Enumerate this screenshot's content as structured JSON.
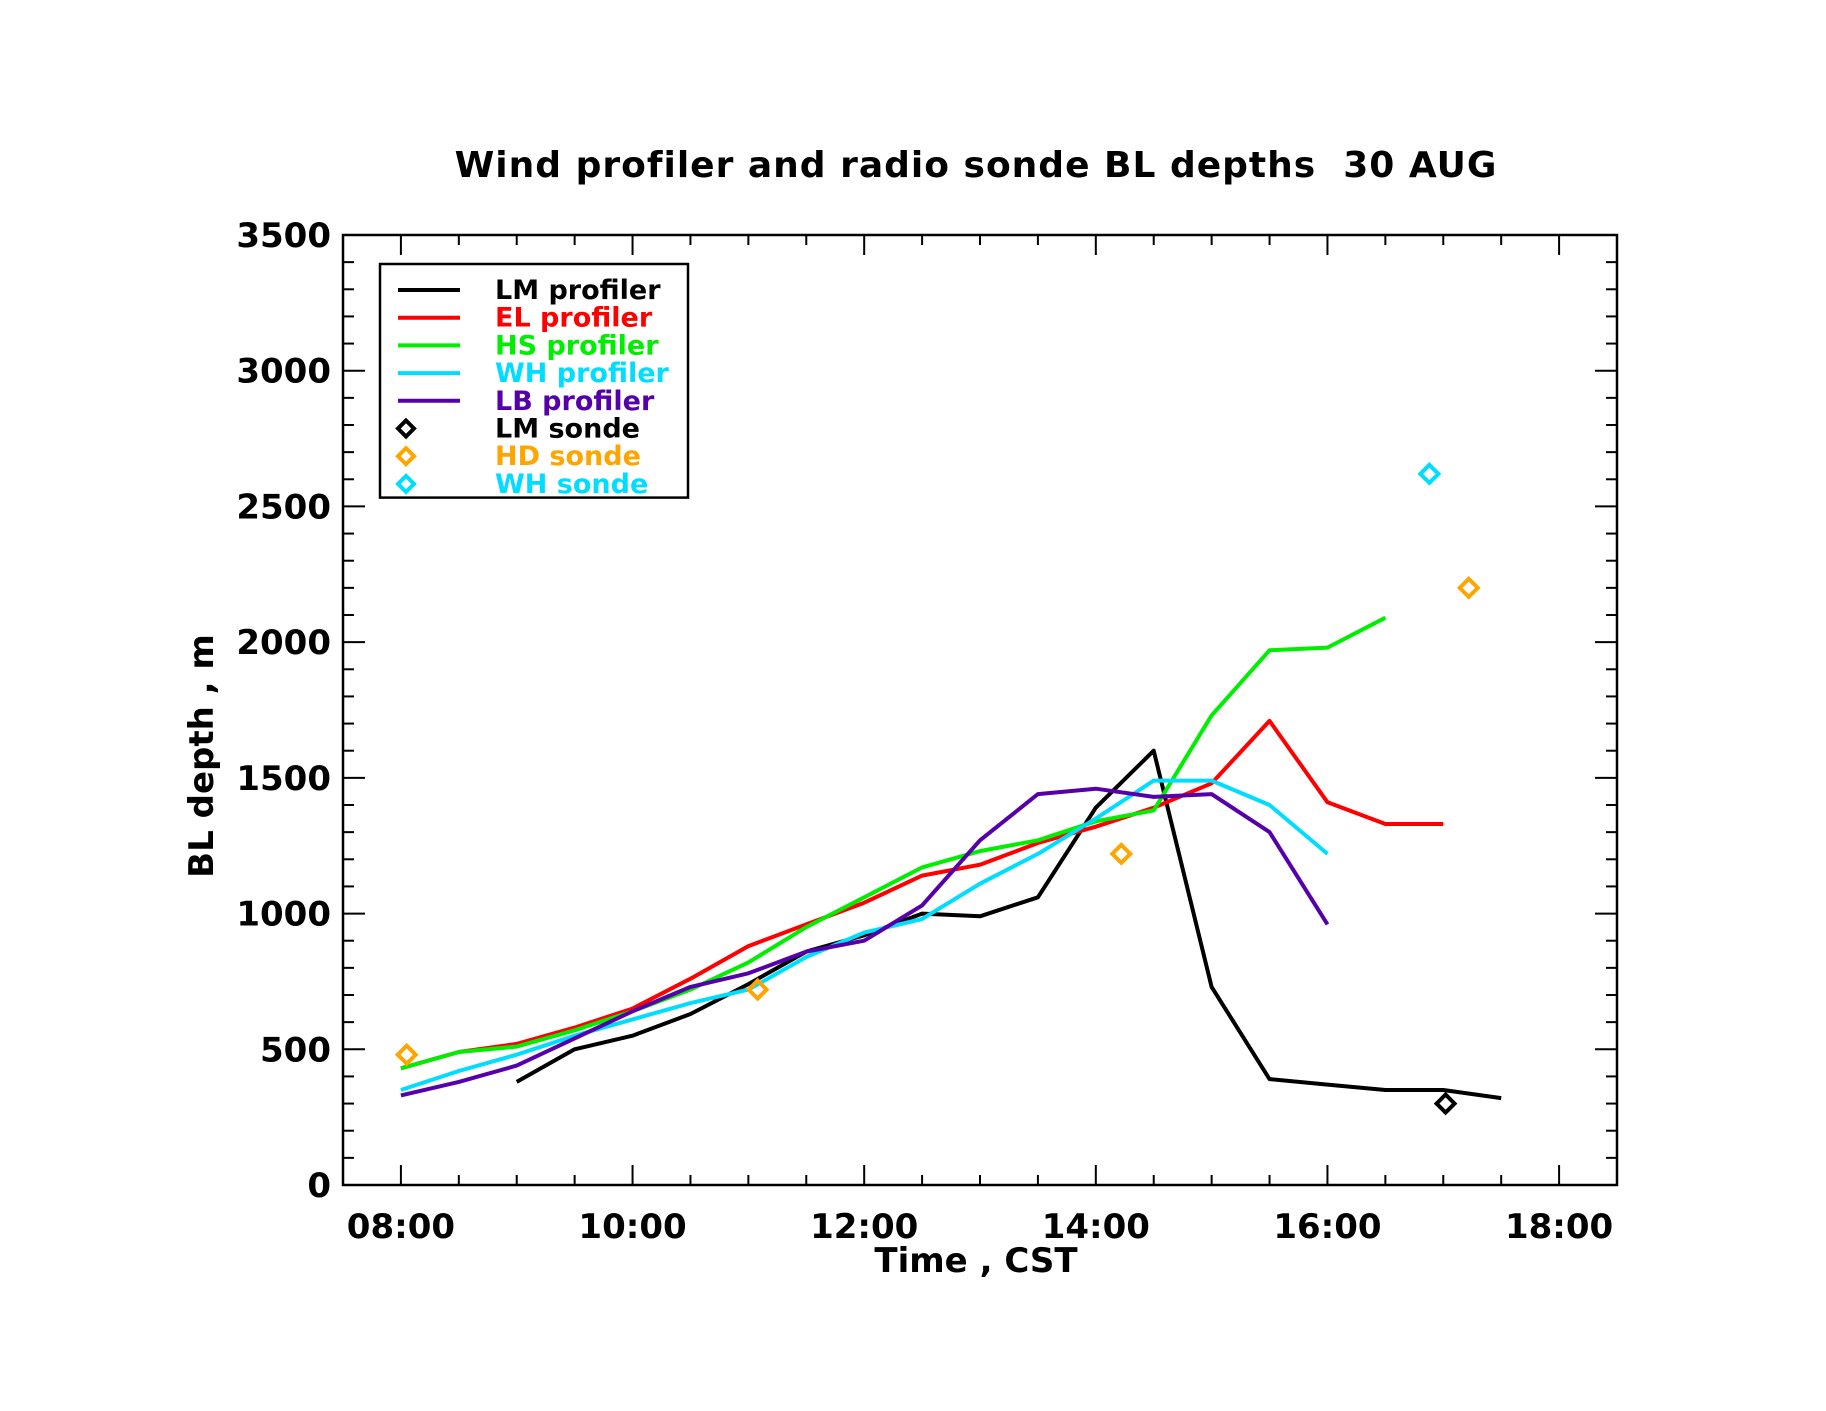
{
  "chart_data": {
    "type": "line",
    "title": "Wind profiler and radio sonde BL depths  30 AUG",
    "xlabel": "Time , CST",
    "ylabel": "BL depth , m",
    "xlim": [
      7.5,
      18.5
    ],
    "ylim": [
      0,
      3500
    ],
    "x_ticks": [
      8,
      10,
      12,
      14,
      16,
      18
    ],
    "x_tick_labels": [
      "08:00",
      "10:00",
      "12:00",
      "14:00",
      "16:00",
      "18:00"
    ],
    "y_ticks": [
      0,
      500,
      1000,
      1500,
      2000,
      2500,
      3000,
      3500
    ],
    "y_tick_labels": [
      "0",
      "500",
      "1000",
      "1500",
      "2000",
      "2500",
      "3000",
      "3500"
    ],
    "legend_position": "top-left",
    "grid": false,
    "series": [
      {
        "name": "LM profiler",
        "kind": "line",
        "color": "#000000",
        "x": [
          9.0,
          9.5,
          10.0,
          10.5,
          11.0,
          11.5,
          12.0,
          12.5,
          13.0,
          13.5,
          14.0,
          14.5,
          15.0,
          15.5,
          16.0,
          16.5,
          17.0,
          17.5
        ],
        "y": [
          380,
          500,
          550,
          630,
          740,
          860,
          920,
          1000,
          990,
          1060,
          1390,
          1600,
          730,
          390,
          370,
          350,
          350,
          320
        ]
      },
      {
        "name": "EL profiler",
        "kind": "line",
        "color": "#ff0000",
        "x": [
          8.0,
          8.5,
          9.0,
          9.5,
          10.0,
          10.5,
          11.0,
          11.5,
          12.0,
          12.5,
          13.0,
          13.5,
          14.0,
          14.5,
          15.0,
          15.5,
          16.0,
          16.5,
          17.0
        ],
        "y": [
          430,
          490,
          520,
          580,
          650,
          760,
          880,
          960,
          1040,
          1140,
          1180,
          1260,
          1320,
          1390,
          1480,
          1710,
          1410,
          1330,
          1330
        ]
      },
      {
        "name": "HS profiler",
        "kind": "line",
        "color": "#00ee00",
        "x": [
          8.0,
          8.5,
          9.0,
          9.5,
          10.0,
          10.5,
          11.0,
          11.5,
          12.0,
          12.5,
          13.0,
          13.5,
          14.0,
          14.5,
          15.0,
          15.5,
          16.0,
          16.5
        ],
        "y": [
          430,
          490,
          510,
          570,
          640,
          720,
          820,
          950,
          1060,
          1170,
          1230,
          1270,
          1340,
          1380,
          1730,
          1970,
          1980,
          2090
        ]
      },
      {
        "name": "WH profiler",
        "kind": "line",
        "color": "#00ddff",
        "x": [
          8.0,
          8.5,
          9.0,
          9.5,
          10.0,
          10.5,
          11.0,
          11.5,
          12.0,
          12.5,
          13.0,
          13.5,
          14.0,
          14.5,
          15.0,
          15.5,
          16.0
        ],
        "y": [
          350,
          420,
          480,
          550,
          610,
          670,
          720,
          840,
          930,
          980,
          1110,
          1220,
          1350,
          1490,
          1490,
          1400,
          1220
        ]
      },
      {
        "name": "LB profiler",
        "kind": "line",
        "color": "#5500aa",
        "x": [
          8.0,
          8.5,
          9.0,
          9.5,
          10.0,
          10.5,
          11.0,
          11.5,
          12.0,
          12.5,
          13.0,
          13.5,
          14.0,
          14.5,
          15.0,
          15.5,
          16.0
        ],
        "y": [
          330,
          380,
          440,
          540,
          640,
          730,
          780,
          860,
          900,
          1030,
          1270,
          1440,
          1460,
          1430,
          1440,
          1300,
          960
        ]
      },
      {
        "name": "LM sonde",
        "kind": "marker",
        "color": "#000000",
        "x": [
          17.02
        ],
        "y": [
          300
        ]
      },
      {
        "name": "HD sonde",
        "kind": "marker",
        "color": "#ffa500",
        "x": [
          8.05,
          11.08,
          14.22,
          17.22
        ],
        "y": [
          480,
          720,
          1220,
          2200
        ]
      },
      {
        "name": "WH sonde",
        "kind": "marker",
        "color": "#00ddff",
        "x": [
          16.88
        ],
        "y": [
          2620
        ]
      }
    ]
  }
}
